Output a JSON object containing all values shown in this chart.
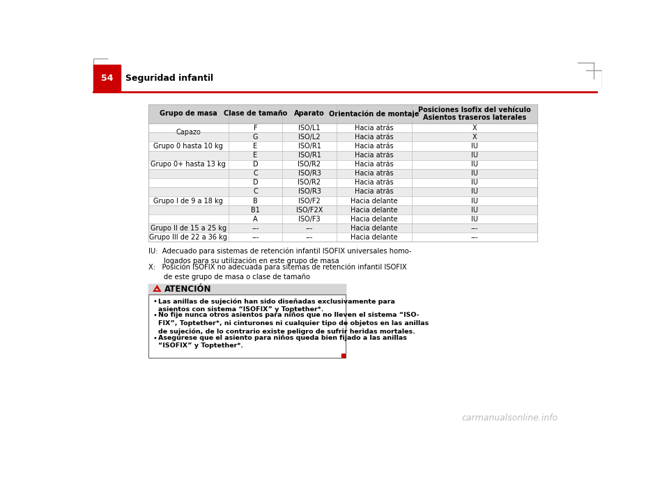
{
  "page_bg": "#ffffff",
  "header_red_bg": "#cc0000",
  "header_page_num": "54",
  "header_title": "Seguridad infantil",
  "header_line_color": "#cc0000",
  "table_header_bg": "#d0d0d0",
  "table_row_alt_bg": "#ebebeb",
  "table_row_white_bg": "#ffffff",
  "table_border_color": "#bbbbbb",
  "table_headers": [
    "Grupo de masa",
    "Clase de tamaño",
    "Aparato",
    "Orientación de montaje",
    "Posiciones Isofix del vehículo\nAsientos traseros laterales"
  ],
  "table_rows": [
    [
      "Capazo",
      "F",
      "ISO/L1",
      "Hacia atrás",
      "X"
    ],
    [
      "Capazo",
      "G",
      "ISO/L2",
      "Hacia atrás",
      "X"
    ],
    [
      "Grupo 0 hasta 10 kg",
      "E",
      "ISO/R1",
      "Hacia atrás",
      "IU"
    ],
    [
      "Grupo 0+ hasta 13 kg",
      "E",
      "ISO/R1",
      "Hacia atrás",
      "IU"
    ],
    [
      "Grupo 0+ hasta 13 kg",
      "D",
      "ISO/R2",
      "Hacia atrás",
      "IU"
    ],
    [
      "Grupo 0+ hasta 13 kg",
      "C",
      "ISO/R3",
      "Hacia atrás",
      "IU"
    ],
    [
      "Grupo I de 9 a 18 kg",
      "D",
      "ISO/R2",
      "Hacia atrás",
      "IU"
    ],
    [
      "Grupo I de 9 a 18 kg",
      "C",
      "ISO/R3",
      "Hacia atrás",
      "IU"
    ],
    [
      "Grupo I de 9 a 18 kg",
      "B",
      "ISO/F2",
      "Hacia delante",
      "IU"
    ],
    [
      "Grupo I de 9 a 18 kg",
      "B1",
      "ISO/F2X",
      "Hacia delante",
      "IU"
    ],
    [
      "Grupo I de 9 a 18 kg",
      "A",
      "ISO/F3",
      "Hacia delante",
      "IU"
    ],
    [
      "Grupo II de 15 a 25 kg",
      "---",
      "---",
      "Hacia delante",
      "---"
    ],
    [
      "Grupo III de 22 a 36 kg",
      "---",
      "---",
      "Hacia delante",
      "---"
    ]
  ],
  "merged_col0": [
    {
      "label": "Capazo",
      "rows": [
        0,
        1
      ]
    },
    {
      "label": "Grupo 0 hasta 10 kg",
      "rows": [
        2
      ]
    },
    {
      "label": "Grupo 0+ hasta 13 kg",
      "rows": [
        3,
        4,
        5
      ]
    },
    {
      "label": "Grupo I de 9 a 18 kg",
      "rows": [
        6,
        7,
        8,
        9,
        10
      ]
    },
    {
      "label": "Grupo II de 15 a 25 kg",
      "rows": [
        11
      ]
    },
    {
      "label": "Grupo III de 22 a 36 kg",
      "rows": [
        12
      ]
    }
  ],
  "footnote_iu": "IU:  Adecuado para sistemas de retención infantil ISOFIX universales homo-\n       logados para su utilización en este grupo de masa",
  "footnote_x": "X:   Posición ISOFIX no adecuada para sitemas de retención infantil ISOFIX\n       de este grupo de masa o clase de tamaño",
  "warning_title": "ATENCIÓN",
  "warning_bullet1": "Las anillas de sujeción han sido diseñadas exclusivamente para\nasientos con sistema “ISOFIX” y Toptether*.",
  "warning_bullet2": "No fije nunca otros asientos para niños que no lleven el sistema “ISO-\nFIX”, Toptether*, ni cinturones ni cualquier tipo de objetos en las anillas\nde sujeción, de lo contrario existe peligro de sufrir heridas mortales.",
  "warning_bullet3": "Asegúrese que el asiento para niños queda bien fijado a las anillas\n“ISOFIX” y Toptether*.",
  "red_marker_color": "#cc0000",
  "corner_bracket_color": "#999999",
  "watermark_text": "carmanualsonline.info",
  "watermark_color": "#bbbbbb"
}
